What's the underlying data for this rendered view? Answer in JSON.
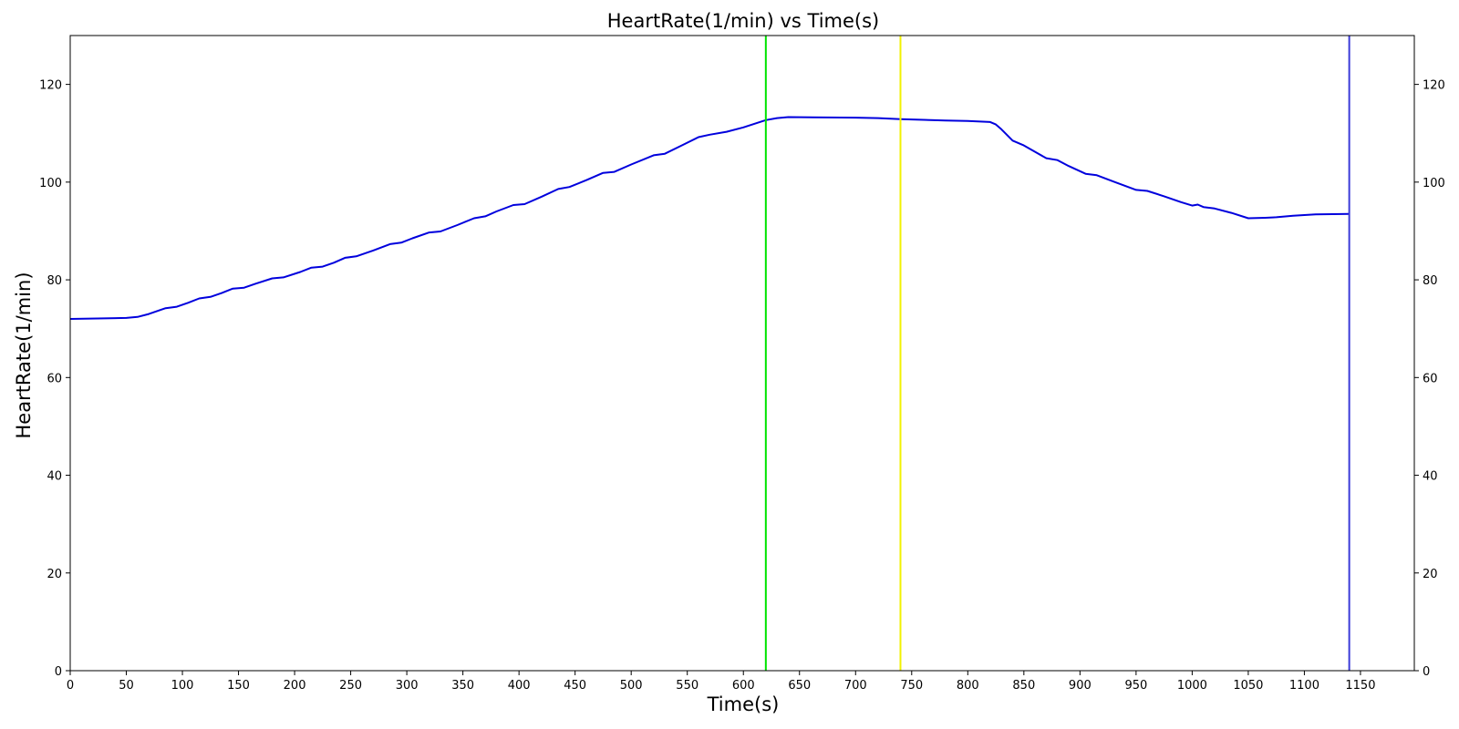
{
  "chart_data": {
    "type": "line",
    "title": "HeartRate(1/min) vs Time(s)",
    "xlabel": "Time(s)",
    "ylabel": "HeartRate(1/min)",
    "xlim": [
      0,
      1198
    ],
    "ylim": [
      0,
      130
    ],
    "x_ticks": [
      0,
      50,
      100,
      150,
      200,
      250,
      300,
      350,
      400,
      450,
      500,
      550,
      600,
      650,
      700,
      750,
      800,
      850,
      900,
      950,
      1000,
      1050,
      1100,
      1150
    ],
    "y_ticks": [
      0,
      20,
      40,
      60,
      80,
      100,
      120
    ],
    "secondary_y_axis": true,
    "grid": false,
    "series": [
      {
        "color": "#0000dd",
        "x": [
          0,
          30,
          50,
          60,
          70,
          80,
          85,
          95,
          105,
          115,
          125,
          135,
          145,
          155,
          165,
          180,
          190,
          205,
          215,
          225,
          235,
          245,
          255,
          270,
          285,
          295,
          305,
          320,
          330,
          345,
          360,
          370,
          380,
          395,
          405,
          420,
          435,
          445,
          460,
          475,
          485,
          500,
          520,
          530,
          545,
          560,
          570,
          585,
          600,
          620,
          630,
          640,
          700,
          720,
          740,
          780,
          800,
          820,
          825,
          830,
          840,
          850,
          860,
          870,
          880,
          890,
          905,
          915,
          930,
          950,
          960,
          975,
          990,
          1000,
          1005,
          1010,
          1020,
          1035,
          1050,
          1065,
          1075,
          1090,
          1110,
          1140
        ],
        "y": [
          72.0,
          72.1,
          72.2,
          72.4,
          73.0,
          73.8,
          74.2,
          74.5,
          75.3,
          76.2,
          76.5,
          77.3,
          78.2,
          78.4,
          79.2,
          80.3,
          80.5,
          81.6,
          82.5,
          82.7,
          83.5,
          84.5,
          84.8,
          86.0,
          87.3,
          87.6,
          88.5,
          89.7,
          89.9,
          91.2,
          92.6,
          93.0,
          94.0,
          95.3,
          95.5,
          97.0,
          98.6,
          99.0,
          100.4,
          101.9,
          102.1,
          103.6,
          105.5,
          105.8,
          107.5,
          109.2,
          109.7,
          110.3,
          111.2,
          112.7,
          113.1,
          113.3,
          113.2,
          113.1,
          112.9,
          112.6,
          112.5,
          112.3,
          111.8,
          110.8,
          108.5,
          107.5,
          106.2,
          104.9,
          104.5,
          103.3,
          101.7,
          101.4,
          100.1,
          98.4,
          98.2,
          97.1,
          95.9,
          95.2,
          95.4,
          94.9,
          94.6,
          93.7,
          92.6,
          92.7,
          92.8,
          93.1,
          93.4,
          93.5
        ]
      }
    ],
    "vertical_lines": [
      {
        "x": 620,
        "color": "#00e400"
      },
      {
        "x": 740,
        "color": "#f2f200"
      },
      {
        "x": 1140,
        "color": "#3a3ad8"
      }
    ]
  }
}
